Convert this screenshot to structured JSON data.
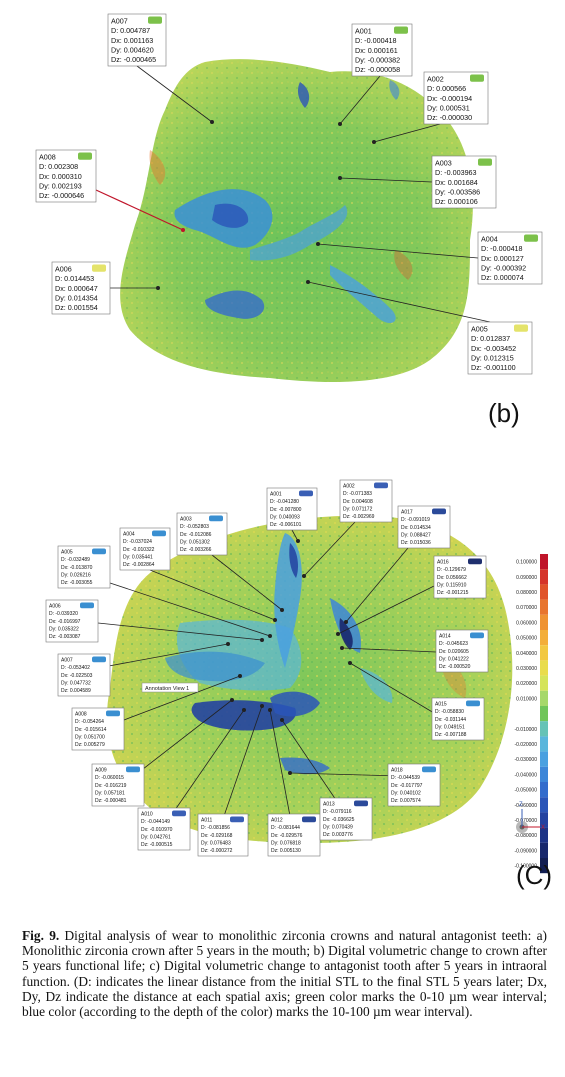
{
  "panel_b": {
    "letter": "(b)",
    "labels": [
      {
        "id": "A007",
        "swatch": "#7cc14a",
        "lines": [
          "D:   0.004787",
          "Dx:  0.001163",
          "Dy:  0.004620",
          "Dz: -0.000465"
        ]
      },
      {
        "id": "A001",
        "swatch": "#7cc14a",
        "lines": [
          "D:   -0.000418",
          "Dx:  0.000161",
          "Dy:  -0.000382",
          "Dz:  -0.000058"
        ]
      },
      {
        "id": "A002",
        "swatch": "#7cc14a",
        "lines": [
          "D:    0.000566",
          "Dx: -0.000194",
          "Dy:  0.000531",
          "Dz: -0.000030"
        ]
      },
      {
        "id": "A008",
        "swatch": "#7cc14a",
        "lines": [
          "D:   0.002308",
          "Dx:  0.000310",
          "Dy:  0.002193",
          "Dz: -0.000646"
        ]
      },
      {
        "id": "A003",
        "swatch": "#7cc14a",
        "lines": [
          "D:   -0.003963",
          "Dx:  0.001684",
          "Dy:  -0.003586",
          "Dz:  0.000106"
        ]
      },
      {
        "id": "A004",
        "swatch": "#7cc14a",
        "lines": [
          "D:   -0.000418",
          "Dx:  0.000127",
          "Dy:  -0.000392",
          "Dz:  0.000074"
        ]
      },
      {
        "id": "A006",
        "swatch": "#e4e36a",
        "lines": [
          "D:   0.014453",
          "Dx:  0.000647",
          "Dy:  0.014354",
          "Dz:  0.001554"
        ]
      },
      {
        "id": "A005",
        "swatch": "#e4e36a",
        "lines": [
          "D:   0.012837",
          "Dx: -0.003452",
          "Dy:  0.012315",
          "Dz: -0.001100"
        ]
      }
    ]
  },
  "panel_c": {
    "letter": "(C)",
    "annotation_view": "Annotation View 1",
    "labels": [
      {
        "id": "A001",
        "swatch": "#3a5fb5",
        "lines": [
          "D:  -0.041280",
          "Dx: -0.007800",
          "Dy:  0.040093",
          "Dz: -0.006101"
        ]
      },
      {
        "id": "A002",
        "swatch": "#3a5fb5",
        "lines": [
          "D:  -0.071383",
          "Dx:  0.004608",
          "Dy:  0.071172",
          "Dz: -0.002969"
        ]
      },
      {
        "id": "A003",
        "swatch": "#3a8fd1",
        "lines": [
          "D:  -0.052803",
          "Dx: -0.012086",
          "Dy:  0.051302",
          "Dz: -0.003266"
        ]
      },
      {
        "id": "A004",
        "swatch": "#3a8fd1",
        "lines": [
          "D:  -0.037024",
          "Dx: -0.010322",
          "Dy:  0.035441",
          "Dz: -0.002864"
        ]
      },
      {
        "id": "A017",
        "swatch": "#2b4a9a",
        "lines": [
          "D:  -0.091019",
          "Dx:  0.014534",
          "Dy:  0.088427",
          "Dz:  0.015036"
        ]
      },
      {
        "id": "A005",
        "swatch": "#3a8fd1",
        "lines": [
          "D:  -0.032489",
          "Dx: -0.013870",
          "Dy:  0.026216",
          "Dz: -0.003055"
        ]
      },
      {
        "id": "A016",
        "swatch": "#1f2f6e",
        "lines": [
          "D:  -0.129679",
          "Dx:  0.056662",
          "Dy:  0.115910",
          "Dz: -0.001215"
        ]
      },
      {
        "id": "A006",
        "swatch": "#3a8fd1",
        "lines": [
          "D:  -0.039320",
          "Dx: -0.016997",
          "Dy:  0.035322",
          "Dz: -0.003087"
        ]
      },
      {
        "id": "A014",
        "swatch": "#3a8fd1",
        "lines": [
          "D:  -0.045623",
          "Dx:  0.020605",
          "Dy:  0.041222",
          "Dz: -0.000520"
        ]
      },
      {
        "id": "A007",
        "swatch": "#3a8fd1",
        "lines": [
          "D:  -0.053402",
          "Dx: -0.022503",
          "Dy:  0.047732",
          "Dz:  0.004589"
        ]
      },
      {
        "id": "A008",
        "swatch": "#3a8fd1",
        "lines": [
          "D:  -0.054264",
          "Dx: -0.015614",
          "Dy:  0.051700",
          "Dz:  0.005279"
        ]
      },
      {
        "id": "A015",
        "swatch": "#3a8fd1",
        "lines": [
          "D:  -0.058830",
          "Dx: -0.031144",
          "Dy:  0.049151",
          "Dz: -0.007188"
        ]
      },
      {
        "id": "A009",
        "swatch": "#3a8fd1",
        "lines": [
          "D:  -0.060015",
          "Dx: -0.016219",
          "Dy:  0.057181",
          "Dz: -0.000481"
        ]
      },
      {
        "id": "A018",
        "swatch": "#3a8fd1",
        "lines": [
          "D:  -0.044539",
          "Dx: -0.017797",
          "Dy:  0.040102",
          "Dz:  0.007574"
        ]
      },
      {
        "id": "A010",
        "swatch": "#3a5fb5",
        "lines": [
          "D:  -0.044149",
          "Dx: -0.010970",
          "Dy:  0.042761",
          "Dz: -0.000515"
        ]
      },
      {
        "id": "A011",
        "swatch": "#3a5fb5",
        "lines": [
          "D:  -0.081856",
          "Dx: -0.029168",
          "Dy:  0.076483",
          "Dz: -0.000272"
        ]
      },
      {
        "id": "A012",
        "swatch": "#2b4a9a",
        "lines": [
          "D:  -0.081644",
          "Dx: -0.029576",
          "Dy:  0.076818",
          "Dz:  0.005130"
        ]
      },
      {
        "id": "A013",
        "swatch": "#2b4a9a",
        "lines": [
          "D:  -0.079116",
          "Dx: -0.036625",
          "Dy:  0.070439",
          "Dz:  0.003776"
        ]
      }
    ],
    "legend": [
      {
        "value": "0.100000",
        "color": "#c0152a"
      },
      {
        "value": "0.090000",
        "color": "#d5342a"
      },
      {
        "value": "0.080000",
        "color": "#e0542b"
      },
      {
        "value": "0.070000",
        "color": "#e8752e"
      },
      {
        "value": "0.060000",
        "color": "#ef9333"
      },
      {
        "value": "0.050000",
        "color": "#f3ae3a"
      },
      {
        "value": "0.040000",
        "color": "#f2c842"
      },
      {
        "value": "0.030000",
        "color": "#e9dc4c"
      },
      {
        "value": "0.020000",
        "color": "#d5e45a"
      },
      {
        "value": "0.010000",
        "color": "#a6d86a"
      },
      {
        "value": "",
        "color": "#70c55a"
      },
      {
        "value": "-0.010000",
        "color": "#66c3b6"
      },
      {
        "value": "-0.020000",
        "color": "#5ab6dc"
      },
      {
        "value": "-0.030000",
        "color": "#4aa0e0"
      },
      {
        "value": "-0.040000",
        "color": "#3d86d8"
      },
      {
        "value": "-0.050000",
        "color": "#336ccc"
      },
      {
        "value": "-0.060000",
        "color": "#2a55b8"
      },
      {
        "value": "-0.070000",
        "color": "#2342a0"
      },
      {
        "value": "-0.080000",
        "color": "#1d3386"
      },
      {
        "value": "-0.090000",
        "color": "#18286c"
      },
      {
        "value": "-0.100000",
        "color": "#121e52"
      }
    ],
    "axes": {
      "z": "Z",
      "x": "X"
    }
  },
  "caption": {
    "label": "Fig. 9.",
    "text": " Digital analysis of wear to monolithic zirconia crowns and natural antagonist teeth: a) Monolithic zirconia crown after 5 years in the mouth; b) Digital volumetric change to crown after 5 years functional life; c) Digital volumetric change to antagonist tooth after 5 years in intraoral function. (D: indicates the linear distance from the initial STL to the final STL 5 years later; Dx, Dy, Dz indicate the distance at each spatial axis; green color marks the 0-10 µm wear interval; blue color (according to the depth of the color) marks the 10-100 µm wear interval)."
  }
}
